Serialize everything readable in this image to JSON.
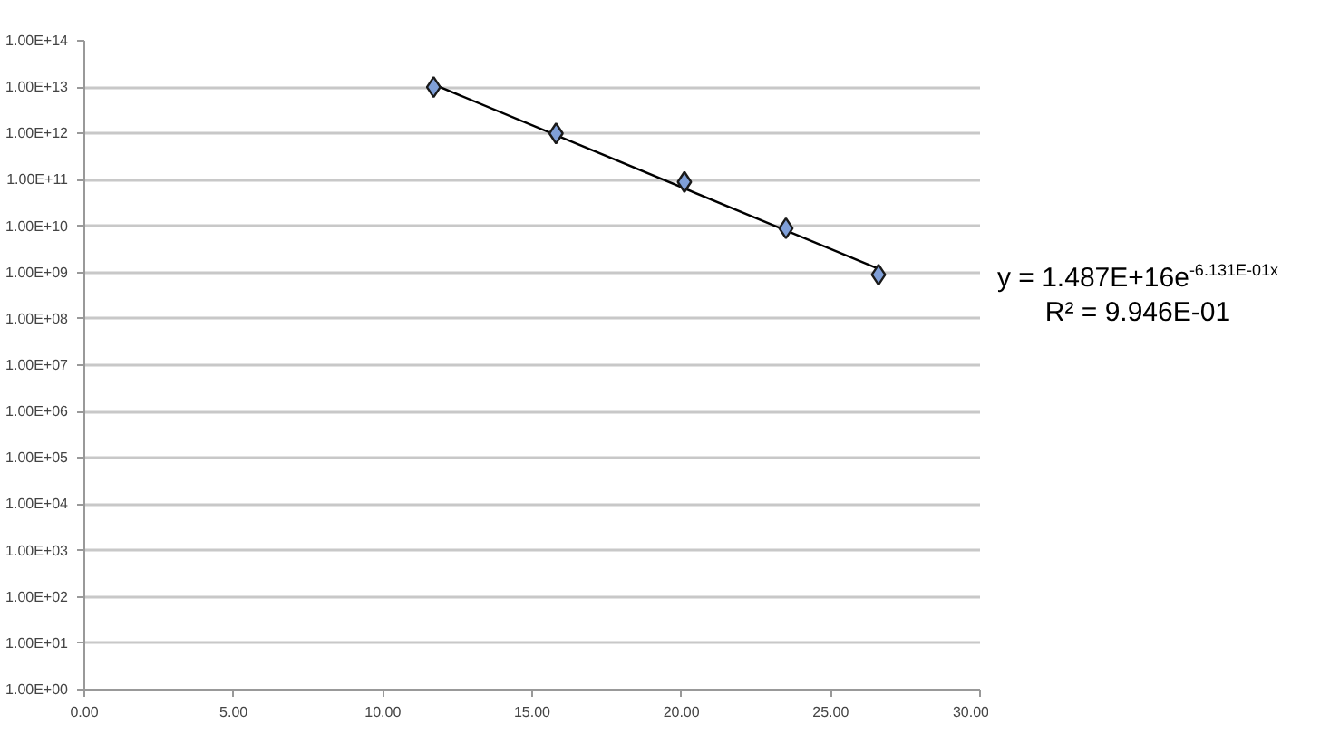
{
  "chart_data": {
    "type": "scatter",
    "log": "y",
    "grid": "y",
    "xlim": [
      0,
      30
    ],
    "xticks": [
      {
        "value": 0,
        "label": "0.00"
      },
      {
        "value": 5,
        "label": "5.00"
      },
      {
        "value": 10,
        "label": "10.00"
      },
      {
        "value": 15,
        "label": "15.00"
      },
      {
        "value": 20,
        "label": "20.00"
      },
      {
        "value": 25,
        "label": "25.00"
      },
      {
        "value": 30,
        "label": "30.00"
      }
    ],
    "ylim": [
      1,
      100000000000000.0
    ],
    "yticks": [
      {
        "value": 1,
        "label": "1.00E+00"
      },
      {
        "value": 10.0,
        "label": "1.00E+01"
      },
      {
        "value": 100.0,
        "label": "1.00E+02"
      },
      {
        "value": 1000.0,
        "label": "1.00E+03"
      },
      {
        "value": 10000.0,
        "label": "1.00E+04"
      },
      {
        "value": 100000.0,
        "label": "1.00E+05"
      },
      {
        "value": 1000000.0,
        "label": "1.00E+06"
      },
      {
        "value": 10000000.0,
        "label": "1.00E+07"
      },
      {
        "value": 100000000.0,
        "label": "1.00E+08"
      },
      {
        "value": 1000000000.0,
        "label": "1.00E+09"
      },
      {
        "value": 10000000000.0,
        "label": "1.00E+10"
      },
      {
        "value": 100000000000.0,
        "label": "1.00E+11"
      },
      {
        "value": 1000000000000.0,
        "label": "1.00E+12"
      },
      {
        "value": 10000000000000.0,
        "label": "1.00E+13"
      },
      {
        "value": 100000000000000.0,
        "label": "1.00E+14"
      }
    ],
    "series": [
      {
        "marker": "diamond",
        "color": "#7f9fd8",
        "x": [
          11.7,
          15.8,
          20.1,
          23.5,
          26.6
        ],
        "values": [
          10000000000000.0,
          1000000000000.0,
          90000000000.0,
          9000000000.0,
          900000000.0
        ]
      },
      {
        "type": "line",
        "marker": "none",
        "color": "#000000",
        "x": [
          11.7,
          26.6
        ],
        "values": [
          11400000000000.0,
          1200000000.0
        ]
      }
    ],
    "annotations": [
      "y = 1.487E+16e$^{-6.131E-01x}$",
      "R² = 9.946E-01"
    ]
  }
}
